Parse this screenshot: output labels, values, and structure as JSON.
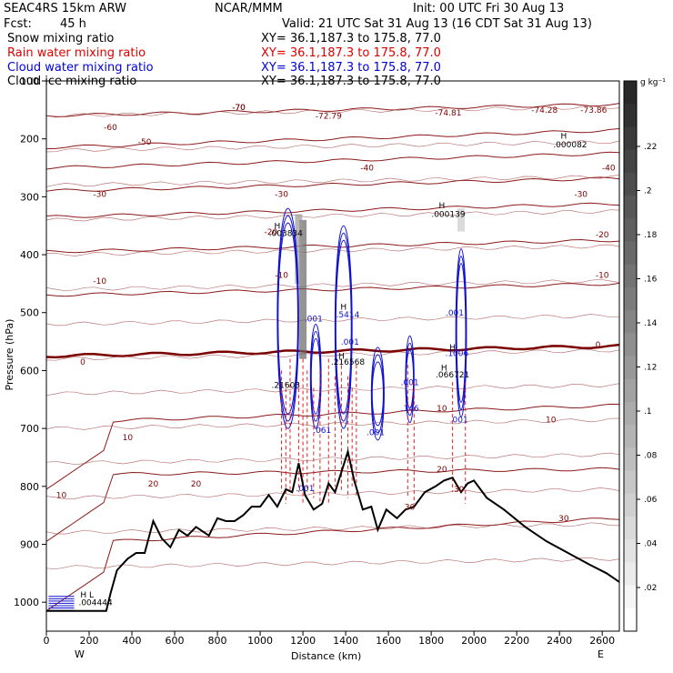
{
  "header": {
    "model": "SEAC4RS 15km ARW",
    "center": "NCAR/MMM",
    "init": "Init: 00 UTC Fri 30 Aug 13",
    "fcst_label": "Fcst:",
    "fcst_value": "45 h",
    "valid": "Valid: 21 UTC Sat 31 Aug 13 (16 CDT Sat 31 Aug 13)"
  },
  "fields": [
    {
      "name": "Snow mixing ratio",
      "xy": "XY=  36.1,187.3 to 175.8, 77.0",
      "color": "#000000"
    },
    {
      "name": "Rain water mixing ratio",
      "xy": "XY=  36.1,187.3 to 175.8, 77.0",
      "color": "#ff0000"
    },
    {
      "name": "Cloud water mixing ratio",
      "xy": "XY=  36.1,187.3 to 175.8, 77.0",
      "color": "#0000ff"
    },
    {
      "name": "Cloud ice mixing ratio",
      "xy": "XY=  36.1,187.3 to 175.8, 77.0",
      "color": "#000000"
    }
  ],
  "colorbar": {
    "unit": "g kg⁻¹",
    "ticks": [
      ".22",
      ".2",
      ".18",
      ".16",
      ".14",
      ".12",
      ".1",
      ".08",
      ".06",
      ".04",
      ".02"
    ]
  },
  "chart_data": {
    "type": "cross-section",
    "xlabel": "Distance (km)",
    "ylabel": "Pressure (hPa)",
    "xlim": [
      0,
      2680
    ],
    "ylim": [
      1050,
      100
    ],
    "x_ticks": [
      0,
      200,
      400,
      600,
      800,
      1000,
      1200,
      1400,
      1600,
      1800,
      2000,
      2200,
      2400,
      2600
    ],
    "y_ticks": [
      1000,
      900,
      800,
      700,
      600,
      500,
      400,
      300,
      200,
      100
    ],
    "x_end_labels": [
      "W",
      "E"
    ],
    "temperature_isotherms_C": [
      -70,
      -60,
      -50,
      -40,
      -30,
      -20,
      -10,
      0,
      10,
      20,
      30
    ],
    "freezing_level_hPa": 575,
    "terrain_surface_hPa": [
      [
        0,
        1015
      ],
      [
        280,
        1015
      ],
      [
        300,
        985
      ],
      [
        330,
        945
      ],
      [
        380,
        925
      ],
      [
        420,
        915
      ],
      [
        460,
        915
      ],
      [
        500,
        860
      ],
      [
        540,
        890
      ],
      [
        580,
        905
      ],
      [
        620,
        875
      ],
      [
        660,
        885
      ],
      [
        700,
        870
      ],
      [
        760,
        885
      ],
      [
        800,
        855
      ],
      [
        840,
        860
      ],
      [
        880,
        860
      ],
      [
        920,
        850
      ],
      [
        960,
        835
      ],
      [
        1000,
        835
      ],
      [
        1040,
        815
      ],
      [
        1080,
        835
      ],
      [
        1120,
        805
      ],
      [
        1150,
        810
      ],
      [
        1180,
        760
      ],
      [
        1210,
        815
      ],
      [
        1250,
        840
      ],
      [
        1290,
        830
      ],
      [
        1320,
        795
      ],
      [
        1350,
        810
      ],
      [
        1380,
        775
      ],
      [
        1410,
        740
      ],
      [
        1440,
        790
      ],
      [
        1480,
        840
      ],
      [
        1520,
        835
      ],
      [
        1550,
        875
      ],
      [
        1590,
        840
      ],
      [
        1640,
        855
      ],
      [
        1680,
        840
      ],
      [
        1720,
        835
      ],
      [
        1770,
        810
      ],
      [
        1820,
        800
      ],
      [
        1860,
        790
      ],
      [
        1900,
        785
      ],
      [
        1940,
        810
      ],
      [
        1970,
        795
      ],
      [
        2000,
        790
      ],
      [
        2060,
        820
      ],
      [
        2140,
        840
      ],
      [
        2240,
        870
      ],
      [
        2340,
        895
      ],
      [
        2440,
        915
      ],
      [
        2540,
        935
      ],
      [
        2620,
        950
      ],
      [
        2680,
        965
      ]
    ],
    "annotations": [
      {
        "text": "-70",
        "x": 900,
        "p": 150
      },
      {
        "text": "-72.79",
        "x": 1320,
        "p": 165
      },
      {
        "text": "-74.81",
        "x": 1880,
        "p": 160
      },
      {
        "text": "-74.28",
        "x": 2330,
        "p": 155
      },
      {
        "text": "-73.86",
        "x": 2560,
        "p": 155
      },
      {
        "text": "H",
        "x": 2420,
        "p": 200
      },
      {
        "text": ".000082",
        "x": 2450,
        "p": 215
      },
      {
        "text": "H",
        "x": 1850,
        "p": 320
      },
      {
        "text": ".000139",
        "x": 1880,
        "p": 335
      },
      {
        "text": "H",
        "x": 1080,
        "p": 355
      },
      {
        "text": ".003834",
        "x": 1120,
        "p": 368
      },
      {
        "text": "H",
        "x": 1390,
        "p": 495
      },
      {
        "text": ".5414",
        "x": 1410,
        "p": 508
      },
      {
        "text": "H",
        "x": 1900,
        "p": 565
      },
      {
        "text": ".1006",
        "x": 1920,
        "p": 575
      },
      {
        "text": "H",
        "x": 1860,
        "p": 600
      },
      {
        "text": ".066721",
        "x": 1900,
        "p": 612
      },
      {
        "text": "H",
        "x": 1380,
        "p": 580
      },
      {
        "text": ".216568",
        "x": 1410,
        "p": 590
      },
      {
        "text": ".21603",
        "x": 1120,
        "p": 630
      },
      {
        "text": ".001",
        "x": 1250,
        "p": 515
      },
      {
        "text": ".001",
        "x": 1420,
        "p": 555
      },
      {
        "text": ".001",
        "x": 1910,
        "p": 505
      },
      {
        "text": ".001",
        "x": 1700,
        "p": 625
      },
      {
        "text": ".146",
        "x": 1700,
        "p": 670
      },
      {
        "text": ".001",
        "x": 1540,
        "p": 712
      },
      {
        "text": ".061",
        "x": 1290,
        "p": 708
      },
      {
        "text": ".001",
        "x": 1210,
        "p": 808
      },
      {
        "text": ".001",
        "x": 1930,
        "p": 690
      },
      {
        "text": "H L",
        "x": 190,
        "p": 992
      },
      {
        "text": ".004444",
        "x": 230,
        "p": 1005
      }
    ]
  }
}
